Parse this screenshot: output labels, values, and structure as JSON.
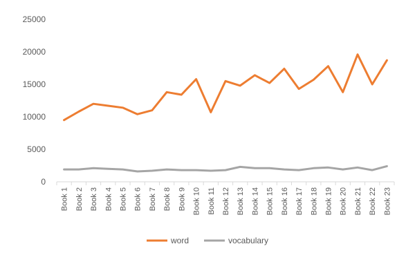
{
  "chart_data": {
    "type": "line",
    "categories": [
      "Book 1",
      "Book 2",
      "Book 3",
      "Book 4",
      "Book 5",
      "Book 6",
      "Book 7",
      "Book 8",
      "Book 9",
      "Book 10",
      "Book 11",
      "Book 12",
      "Book 13",
      "Book 14",
      "Book 15",
      "Book 16",
      "Book 17",
      "Book 18",
      "Book 19",
      "Book 20",
      "Book 21",
      "Book 22",
      "Book 23"
    ],
    "series": [
      {
        "name": "word",
        "color": "#ED7D31",
        "values": [
          9500,
          10800,
          12000,
          11700,
          11400,
          10400,
          11000,
          13800,
          13400,
          15800,
          10700,
          15500,
          14800,
          16400,
          15200,
          17400,
          14300,
          15700,
          17800,
          13800,
          19600,
          15000,
          18700
        ]
      },
      {
        "name": "vocabulary",
        "color": "#A5A5A5",
        "values": [
          1900,
          1900,
          2100,
          2000,
          1900,
          1600,
          1700,
          1900,
          1800,
          1800,
          1700,
          1800,
          2300,
          2100,
          2100,
          1900,
          1800,
          2100,
          2200,
          1900,
          2200,
          1800,
          2400
        ]
      }
    ],
    "yticks": [
      "0",
      "5000",
      "10000",
      "15000",
      "20000",
      "25000"
    ],
    "ylim": [
      0,
      25000
    ],
    "title": "",
    "xlabel": "",
    "ylabel": "",
    "grid": false,
    "legend": "bottom"
  }
}
